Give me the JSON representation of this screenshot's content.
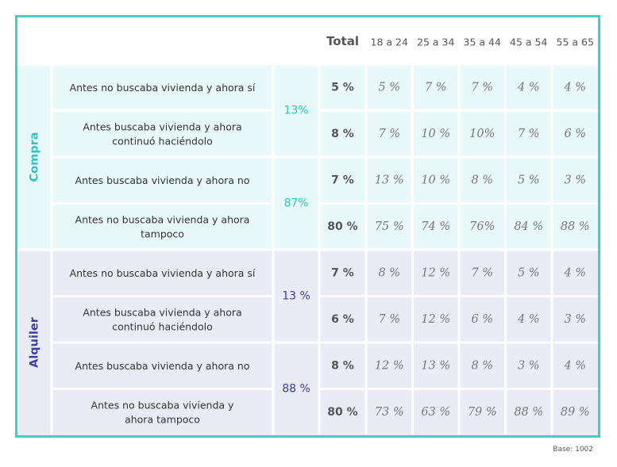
{
  "chart_data": {
    "type": "table",
    "columns": [
      "Total",
      "18 a 24",
      "25 a 34",
      "35 a 44",
      "45 a 54",
      "55 a 65"
    ],
    "groups": [
      {
        "name": "Compra",
        "color": "#2fc4c4",
        "bg": "#e9f8f8",
        "subtotals": [
          "13%",
          "87%"
        ],
        "rows": [
          {
            "label": [
              "Antes no buscaba vivienda y ahora sí"
            ],
            "total": "5 %",
            "values": [
              "5 %",
              "7 %",
              "7 %",
              "4 %",
              "4 %"
            ]
          },
          {
            "label": [
              "Antes buscaba vivienda y ahora",
              "continuó haciéndolo"
            ],
            "total": "8 %",
            "values": [
              "7 %",
              "10 %",
              "10%",
              "7 %",
              "6 %"
            ]
          },
          {
            "label": [
              "Antes buscaba vivienda y ahora no"
            ],
            "total": "7 %",
            "values": [
              "13 %",
              "10 %",
              "8 %",
              "5 %",
              "3 %"
            ]
          },
          {
            "label": [
              "Antes no buscaba vivienda y ahora",
              "tampoco"
            ],
            "total": "80 %",
            "values": [
              "75 %",
              "74 %",
              "76%",
              "84 %",
              "88 %"
            ]
          }
        ]
      },
      {
        "name": "Alquiler",
        "color": "#3b3fa0",
        "bg": "#ebebf6",
        "subtotals": [
          "13 %",
          "88 %"
        ],
        "rows": [
          {
            "label": [
              "Antes no buscaba vivienda y ahora sí"
            ],
            "total": "7 %",
            "values": [
              "8 %",
              "12 %",
              "7 %",
              "5 %",
              "4 %"
            ]
          },
          {
            "label": [
              "Antes buscaba vivienda y ahora",
              "continuó haciéndolo"
            ],
            "total": "6 %",
            "values": [
              "7 %",
              "12 %",
              "6 %",
              "4 %",
              "3 %"
            ]
          },
          {
            "label": [
              "Antes buscaba vivienda y ahora no"
            ],
            "total": "8 %",
            "values": [
              "12 %",
              "13 %",
              "8 %",
              "3 %",
              "4 %"
            ]
          },
          {
            "label": [
              "Antes no buscaba vivienda y",
              "ahora tampoco"
            ],
            "total": "80 %",
            "values": [
              "73 %",
              "63 %",
              "79 %",
              "88 %",
              "89 %"
            ]
          }
        ]
      }
    ],
    "base_note": "Base: 1002"
  }
}
